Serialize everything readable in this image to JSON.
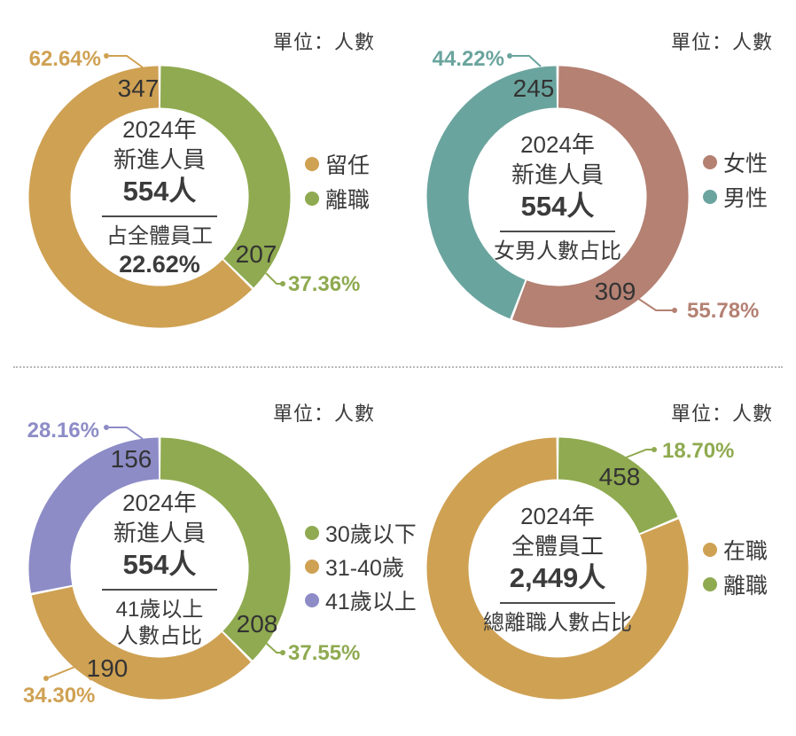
{
  "unit_label": "單位：人數",
  "palette": {
    "gold": "#CFA153",
    "green": "#8FAA50",
    "teal": "#6AA49E",
    "rose": "#B48173",
    "purple": "#8D8CC7",
    "dark": "#3B3B3B"
  },
  "charts": [
    {
      "name": "2024新進人員留任離職占比",
      "center": {
        "title1": "2024年",
        "title2": "新進人員",
        "total": "554人",
        "sub1": "占全體員工",
        "sub2": "22.62%"
      },
      "legend": [
        {
          "label": "留任",
          "color": "gold"
        },
        {
          "label": "離職",
          "color": "green"
        }
      ],
      "segments": [
        {
          "name": "離職",
          "value": 207,
          "pct": "37.36%",
          "pct_value": 37.36,
          "color": "green"
        },
        {
          "name": "留任",
          "value": 347,
          "pct": "62.64%",
          "pct_value": 62.64,
          "color": "gold"
        }
      ]
    },
    {
      "name": "2024新進人員女男人數占比",
      "center": {
        "title1": "2024年",
        "title2": "新進人員",
        "total": "554人",
        "sub1": "女男人數占比"
      },
      "legend": [
        {
          "label": "女性",
          "color": "rose"
        },
        {
          "label": "男性",
          "color": "teal"
        }
      ],
      "segments": [
        {
          "name": "女性",
          "value": 309,
          "pct": "55.78%",
          "pct_value": 55.78,
          "color": "rose"
        },
        {
          "name": "男性",
          "value": 245,
          "pct": "44.22%",
          "pct_value": 44.22,
          "color": "teal"
        }
      ]
    },
    {
      "name": "2024新進人員年齡占比",
      "center": {
        "title1": "2024年",
        "title2": "新進人員",
        "total": "554人",
        "sub1": "41歲以上",
        "sub2": "人數占比"
      },
      "legend": [
        {
          "label": "30歲以下",
          "color": "green"
        },
        {
          "label": "31-40歲",
          "color": "gold"
        },
        {
          "label": "41歲以上",
          "color": "purple"
        }
      ],
      "segments": [
        {
          "name": "30歲以下",
          "value": 208,
          "pct": "37.55%",
          "pct_value": 37.55,
          "color": "green"
        },
        {
          "name": "31-40歲",
          "value": 190,
          "pct": "34.30%",
          "pct_value": 34.3,
          "color": "gold"
        },
        {
          "name": "41歲以上",
          "value": 156,
          "pct": "28.16%",
          "pct_value": 28.16,
          "color": "purple"
        }
      ]
    },
    {
      "name": "2024全體員工總離職人數占比",
      "center": {
        "title1": "2024年",
        "title2": "全體員工",
        "total": "2,449人",
        "sub1": "總離職人數占比"
      },
      "legend": [
        {
          "label": "在職",
          "color": "gold"
        },
        {
          "label": "離職",
          "color": "green"
        }
      ],
      "segments": [
        {
          "name": "離職",
          "value": 458,
          "pct": "18.70%",
          "pct_value": 18.7,
          "color": "green"
        },
        {
          "name": "在職",
          "pct_value": 81.3,
          "color": "gold"
        }
      ]
    }
  ],
  "chart_data": [
    {
      "type": "pie",
      "title": "2024年新進人員 554人 占全體員工 22.62%",
      "categories": [
        "離職",
        "留任"
      ],
      "values": [
        207,
        347
      ],
      "percents": [
        37.36,
        62.64
      ],
      "unit": "單位：人數",
      "legend_position": "right"
    },
    {
      "type": "pie",
      "title": "2024年新進人員 554人 女男人數占比",
      "categories": [
        "女性",
        "男性"
      ],
      "values": [
        309,
        245
      ],
      "percents": [
        55.78,
        44.22
      ],
      "unit": "單位：人數",
      "legend_position": "right"
    },
    {
      "type": "pie",
      "title": "2024年新進人員 554人 41歲以上人數占比",
      "categories": [
        "30歲以下",
        "31-40歲",
        "41歲以上"
      ],
      "values": [
        208,
        190,
        156
      ],
      "percents": [
        37.55,
        34.3,
        28.16
      ],
      "unit": "單位：人數",
      "legend_position": "right"
    },
    {
      "type": "pie",
      "title": "2024年全體員工 2,449人 總離職人數占比",
      "categories": [
        "離職",
        "在職"
      ],
      "values": [
        458,
        null
      ],
      "percents": [
        18.7,
        81.3
      ],
      "unit": "單位：人數",
      "legend_position": "right"
    }
  ]
}
